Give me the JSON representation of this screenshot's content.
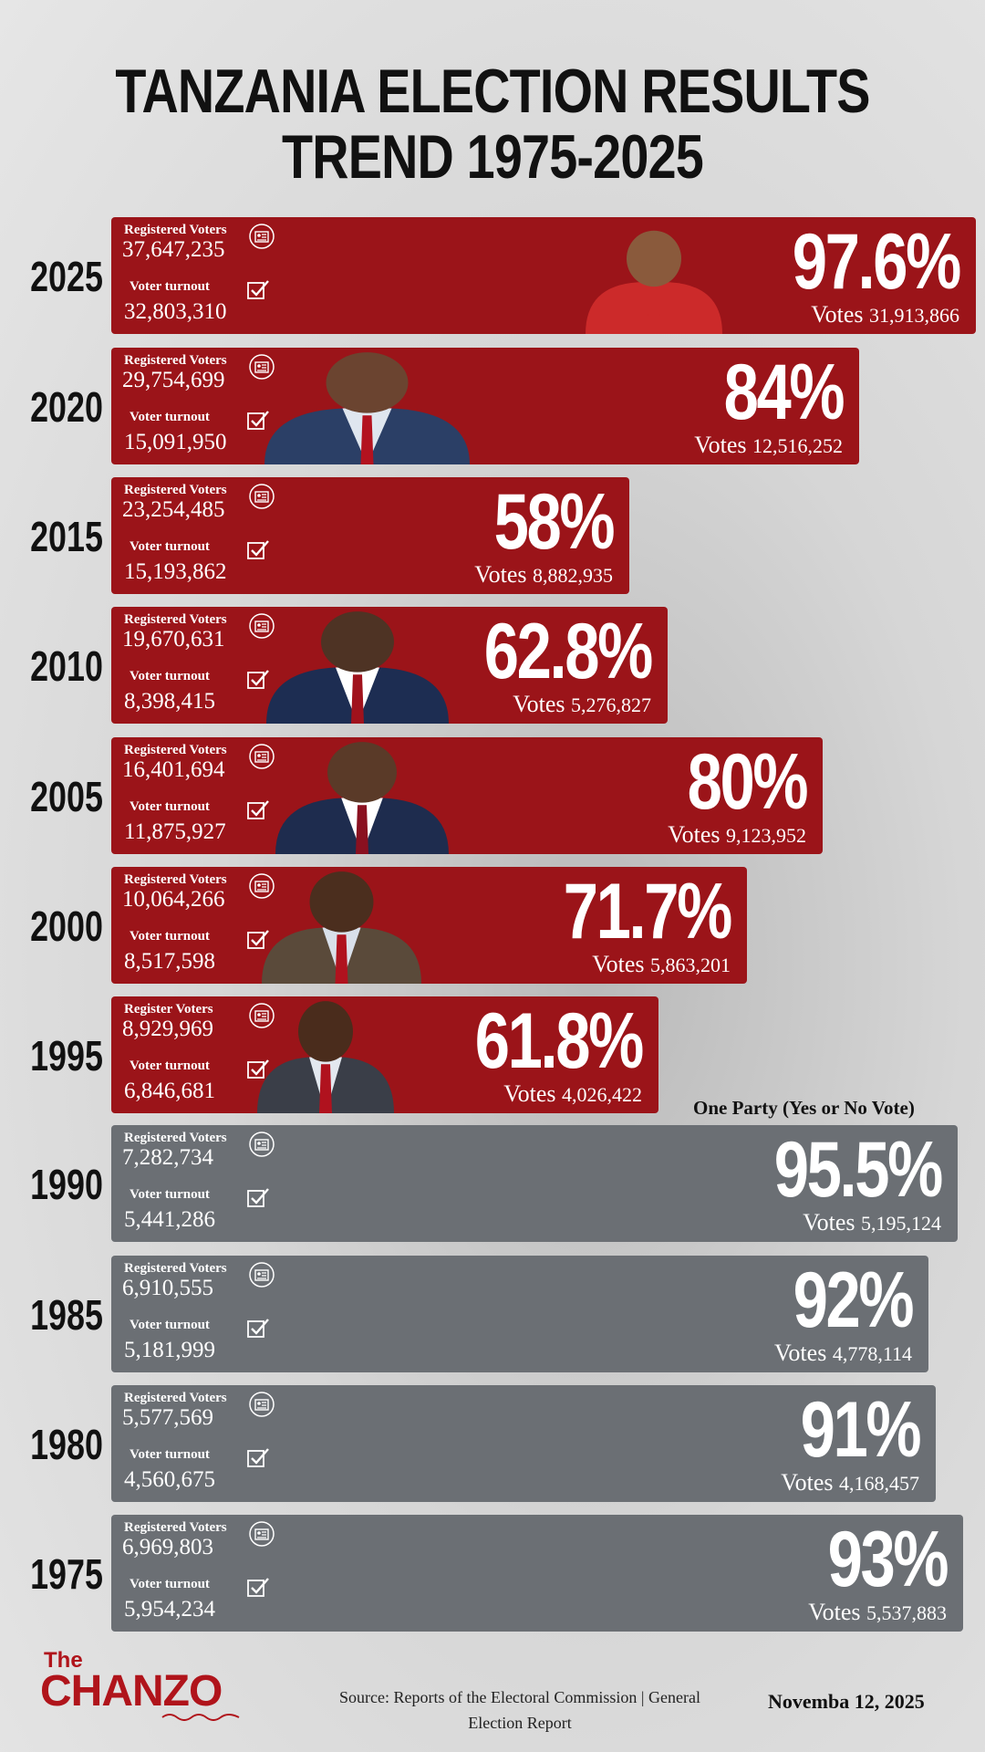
{
  "title_line1": "TANZANIA ELECTION RESULTS",
  "title_line2": "TREND 1975-2025",
  "one_party_note": "One Party (Yes or No Vote)",
  "logo_the": "The",
  "logo_name": "CHANZO",
  "source": "Source: Reports of the Electoral Commission | General Election Report",
  "date": "Novemba 12, 2025",
  "votes_label": "Votes",
  "colors": {
    "multi_party": "#9b1419",
    "one_party": "#6b6f74",
    "logo": "#b0141b"
  },
  "chart_data": {
    "type": "bar",
    "orientation": "horizontal",
    "title": "TANZANIA ELECTION RESULTS TREND 1975-2025",
    "rows": [
      {
        "year": "2025",
        "reg_label": "Registered Voters",
        "registered": "37,647,235",
        "turnout_label": "Voter turnout",
        "turnout": "32,803,310",
        "percent": "97.6%",
        "percent_value": 97.6,
        "votes": "31,913,866",
        "one_party": false
      },
      {
        "year": "2020",
        "reg_label": "Registered Voters",
        "registered": "29,754,699",
        "turnout_label": "Voter turnout",
        "turnout": "15,091,950",
        "percent": "84%",
        "percent_value": 84,
        "votes": "12,516,252",
        "one_party": false
      },
      {
        "year": "2015",
        "reg_label": "Registered Voters",
        "registered": "23,254,485",
        "turnout_label": "Voter turnout",
        "turnout": "15,193,862",
        "percent": "58%",
        "percent_value": 58,
        "votes": "8,882,935",
        "one_party": false
      },
      {
        "year": "2010",
        "reg_label": "Registered Voters",
        "registered": "19,670,631",
        "turnout_label": "Voter turnout",
        "turnout": "8,398,415",
        "percent": "62.8%",
        "percent_value": 62.8,
        "votes": "5,276,827",
        "one_party": false
      },
      {
        "year": "2005",
        "reg_label": "Registered Voters",
        "registered": "16,401,694",
        "turnout_label": "Voter turnout",
        "turnout": "11,875,927",
        "percent": "80%",
        "percent_value": 80,
        "votes": "9,123,952",
        "one_party": false
      },
      {
        "year": "2000",
        "reg_label": "Registered Voters",
        "registered": "10,064,266",
        "turnout_label": "Voter turnout",
        "turnout": "8,517,598",
        "percent": "71.7%",
        "percent_value": 71.7,
        "votes": "5,863,201",
        "one_party": false
      },
      {
        "year": "1995",
        "reg_label": "Register Voters",
        "registered": "8,929,969",
        "turnout_label": "Voter turnout",
        "turnout": "6,846,681",
        "percent": "61.8%",
        "percent_value": 61.8,
        "votes": "4,026,422",
        "one_party": false
      },
      {
        "year": "1990",
        "reg_label": "Registered Voters",
        "registered": "7,282,734",
        "turnout_label": "Voter turnout",
        "turnout": "5,441,286",
        "percent": "95.5%",
        "percent_value": 95.5,
        "votes": "5,195,124",
        "one_party": true
      },
      {
        "year": "1985",
        "reg_label": "Registered Voters",
        "registered": "6,910,555",
        "turnout_label": "Voter turnout",
        "turnout": "5,181,999",
        "percent": "92%",
        "percent_value": 92,
        "votes": "4,778,114",
        "one_party": true
      },
      {
        "year": "1980",
        "reg_label": "Registered Voters",
        "registered": "5,577,569",
        "turnout_label": "Voter turnout",
        "turnout": "4,560,675",
        "percent": "91%",
        "percent_value": 91,
        "votes": "4,168,457",
        "one_party": true
      },
      {
        "year": "1975",
        "reg_label": "Registered Voters",
        "registered": "6,969,803",
        "turnout_label": "Voter turnout",
        "turnout": "5,954,234",
        "percent": "93%",
        "percent_value": 93,
        "votes": "5,537,883",
        "one_party": true
      }
    ]
  }
}
